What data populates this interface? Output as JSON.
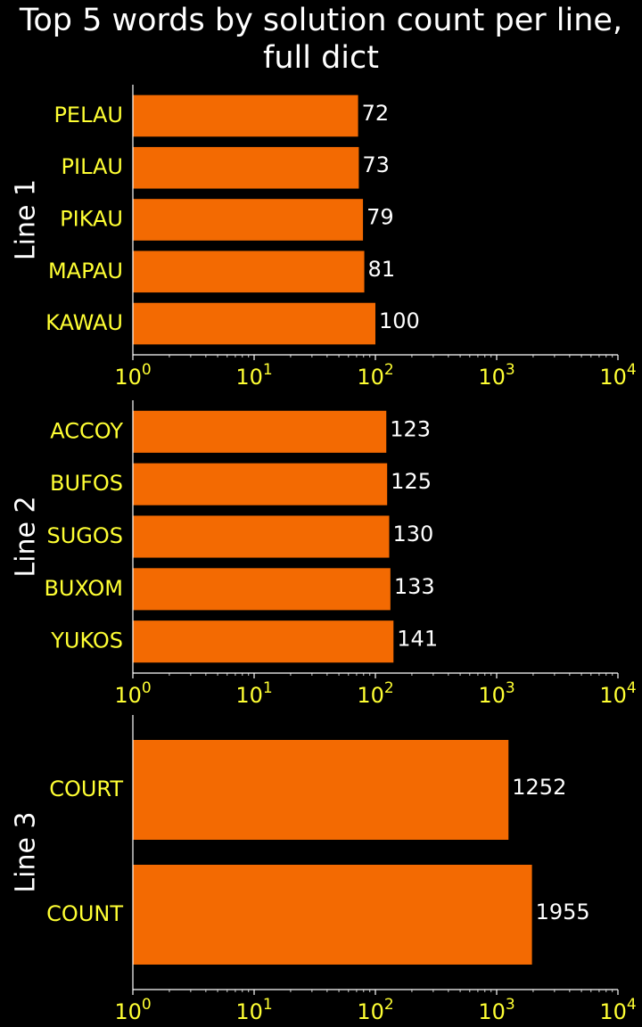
{
  "title_line1": "Top 5 words by solution count per line,",
  "title_line2": "full dict",
  "colors": {
    "background": "#000000",
    "bar": "#f36a02",
    "category_label": "#ffff33",
    "tick_label": "#ffff33",
    "value_label": "#ffffff",
    "title": "#ffffff",
    "axis": "#ffffff"
  },
  "chart_data": [
    {
      "type": "bar",
      "orientation": "horizontal",
      "ylabel": "Line 1",
      "x_scale": "log",
      "xlim": [
        1,
        10000
      ],
      "x_ticks": [
        {
          "value": 1,
          "base": "10",
          "exp": "0"
        },
        {
          "value": 10,
          "base": "10",
          "exp": "1"
        },
        {
          "value": 100,
          "base": "10",
          "exp": "2"
        },
        {
          "value": 1000,
          "base": "10",
          "exp": "3"
        },
        {
          "value": 10000,
          "base": "10",
          "exp": "4"
        }
      ],
      "categories": [
        "PELAU",
        "PILAU",
        "PIKAU",
        "MAPAU",
        "KAWAU"
      ],
      "values": [
        72,
        73,
        79,
        81,
        100
      ],
      "value_labels": [
        "72",
        "73",
        "79",
        "81",
        "100"
      ]
    },
    {
      "type": "bar",
      "orientation": "horizontal",
      "ylabel": "Line 2",
      "x_scale": "log",
      "xlim": [
        1,
        10000
      ],
      "x_ticks": [
        {
          "value": 1,
          "base": "10",
          "exp": "0"
        },
        {
          "value": 10,
          "base": "10",
          "exp": "1"
        },
        {
          "value": 100,
          "base": "10",
          "exp": "2"
        },
        {
          "value": 1000,
          "base": "10",
          "exp": "3"
        },
        {
          "value": 10000,
          "base": "10",
          "exp": "4"
        }
      ],
      "categories": [
        "ACCOY",
        "BUFOS",
        "SUGOS",
        "BUXOM",
        "YUKOS"
      ],
      "values": [
        123,
        125,
        130,
        133,
        141
      ],
      "value_labels": [
        "123",
        "125",
        "130",
        "133",
        "141"
      ]
    },
    {
      "type": "bar",
      "orientation": "horizontal",
      "ylabel": "Line 3",
      "x_scale": "log",
      "xlim": [
        1,
        10000
      ],
      "x_ticks": [
        {
          "value": 1,
          "base": "10",
          "exp": "0"
        },
        {
          "value": 10,
          "base": "10",
          "exp": "1"
        },
        {
          "value": 100,
          "base": "10",
          "exp": "2"
        },
        {
          "value": 1000,
          "base": "10",
          "exp": "3"
        },
        {
          "value": 10000,
          "base": "10",
          "exp": "4"
        }
      ],
      "categories": [
        "COURT",
        "COUNT"
      ],
      "values": [
        1252,
        1955
      ],
      "value_labels": [
        "1252",
        "1955"
      ]
    }
  ]
}
